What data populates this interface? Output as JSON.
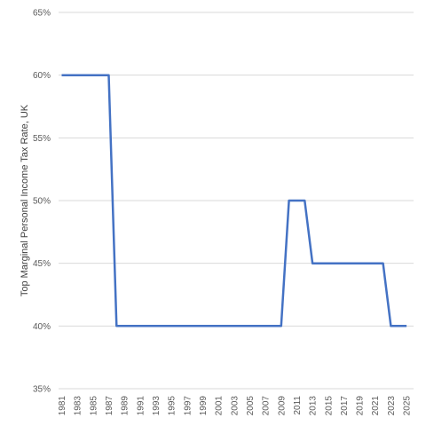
{
  "chart_data": {
    "type": "line",
    "title": "",
    "xlabel": "",
    "ylabel": "Top Marginal Personal Income Tax Rate, UK",
    "ylim": [
      35,
      65
    ],
    "y_ticks": [
      "35%",
      "40%",
      "45%",
      "50%",
      "55%",
      "60%",
      "65%"
    ],
    "y_tick_values": [
      35,
      40,
      45,
      50,
      55,
      60,
      65
    ],
    "x_tick_labels": [
      "1981",
      "1983",
      "1985",
      "1987",
      "1989",
      "1991",
      "1993",
      "1995",
      "1997",
      "1999",
      "2001",
      "2003",
      "2005",
      "2007",
      "2009",
      "2011",
      "2013",
      "2015",
      "2017",
      "2019",
      "2021",
      "2023",
      "2025"
    ],
    "grid": true,
    "legend": "none",
    "x": [
      1981,
      1982,
      1983,
      1984,
      1985,
      1986,
      1987,
      1988,
      1989,
      1990,
      1991,
      1992,
      1993,
      1994,
      1995,
      1996,
      1997,
      1998,
      1999,
      2000,
      2001,
      2002,
      2003,
      2004,
      2005,
      2006,
      2007,
      2008,
      2009,
      2010,
      2011,
      2012,
      2013,
      2014,
      2015,
      2016,
      2017,
      2018,
      2019,
      2020,
      2021,
      2022,
      2023,
      2024,
      2025
    ],
    "series": [
      {
        "values": [
          60,
          60,
          60,
          60,
          60,
          60,
          60,
          40,
          40,
          40,
          40,
          40,
          40,
          40,
          40,
          40,
          40,
          40,
          40,
          40,
          40,
          40,
          40,
          40,
          40,
          40,
          40,
          40,
          40,
          50,
          50,
          50,
          45,
          45,
          45,
          45,
          45,
          45,
          45,
          45,
          45,
          45,
          40,
          40,
          40
        ],
        "color": "#4472c4"
      }
    ]
  }
}
